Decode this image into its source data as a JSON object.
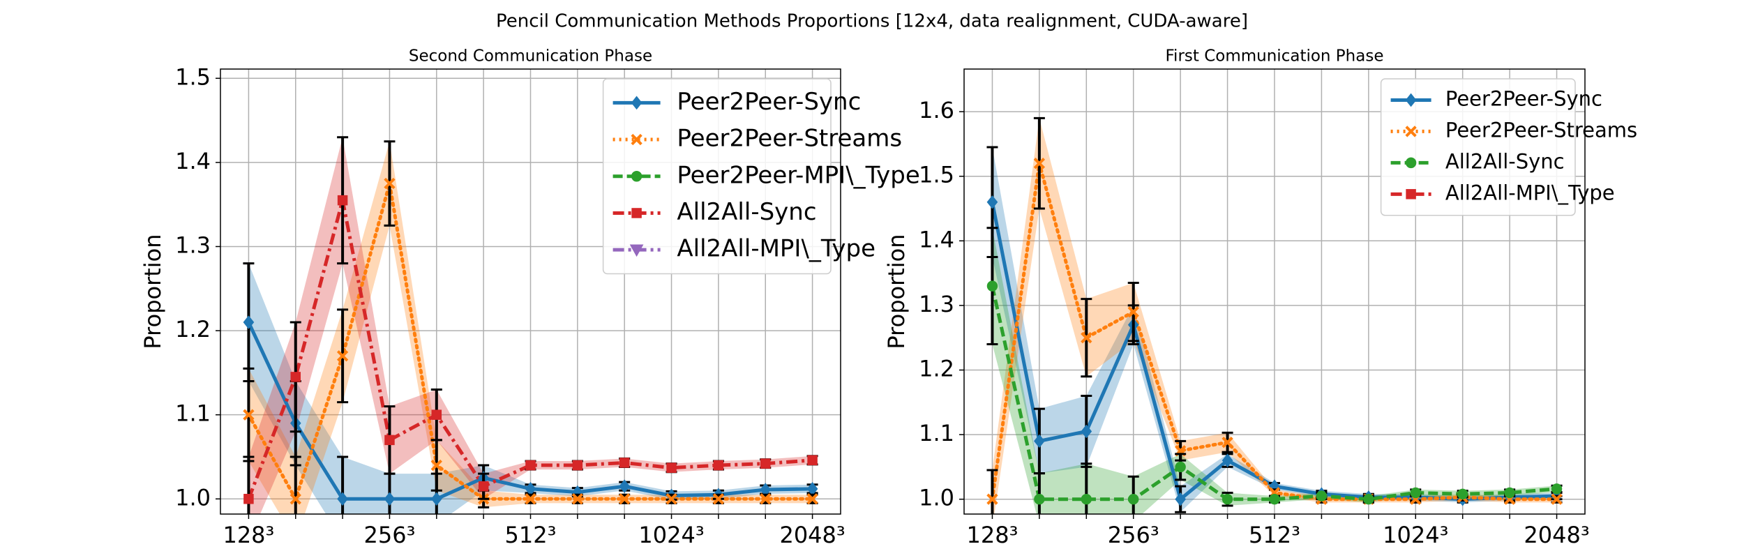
{
  "title": "Pencil Communication Methods Proportions [12x4, data realignment, CUDA-aware]",
  "chart_data": [
    {
      "type": "line",
      "title": "Second Communication Phase",
      "ylabel": "Proportion",
      "categories": [
        "128³",
        null,
        null,
        "256³",
        null,
        null,
        "512³",
        null,
        null,
        "1024³",
        null,
        null,
        "2048³"
      ],
      "ylim": [
        0.982,
        1.511
      ],
      "yticks": [
        {
          "value": 1.0,
          "label": "1.0"
        },
        1.1,
        1.2,
        1.3,
        1.4,
        1.5
      ],
      "grid": true,
      "legend": "upper right",
      "series": [
        {
          "name": "Peer2Peer-Sync",
          "color": "#1f77b4",
          "style": "solid",
          "marker": "diamond",
          "values": [
            1.21,
            1.09,
            1.0,
            1.0,
            1.0,
            1.025,
            1.012,
            1.008,
            1.015,
            1.004,
            1.005,
            1.011,
            1.012
          ],
          "errors": [
            0.07,
            0.05,
            0.05,
            0.03,
            0.03,
            0.015,
            0.005,
            0.005,
            0.005,
            0.005,
            0.005,
            0.005,
            0.005
          ]
        },
        {
          "name": "Peer2Peer-Streams",
          "color": "#ff7f0e",
          "style": "dotted",
          "marker": "x",
          "values": [
            1.1,
            1.0,
            1.17,
            1.375,
            1.04,
            1.0,
            1.0,
            1.0,
            1.0,
            1.0,
            1.0,
            1.0,
            1.0
          ],
          "errors": [
            0.055,
            0.05,
            0.055,
            0.05,
            0.03,
            0.01,
            0.005,
            0.005,
            0.005,
            0.005,
            0.005,
            0.005,
            0.005
          ]
        },
        {
          "name": "Peer2Peer-MPI\\_Type",
          "color": "#2ca02c",
          "style": "dashed",
          "marker": "circle",
          "values": [
            null,
            null,
            null,
            null,
            null,
            null,
            null,
            null,
            null,
            null,
            null,
            null,
            null
          ]
        },
        {
          "name": "All2All-Sync",
          "color": "#d62728",
          "style": "dashdot",
          "marker": "square",
          "values": [
            1.0,
            1.145,
            1.355,
            1.07,
            1.1,
            1.015,
            1.04,
            1.04,
            1.043,
            1.037,
            1.04,
            1.042,
            1.046
          ],
          "errors": [
            0.05,
            0.065,
            0.075,
            0.04,
            0.03,
            0.015,
            0.005,
            0.005,
            0.005,
            0.005,
            0.005,
            0.005,
            0.005
          ]
        },
        {
          "name": "All2All-MPI\\_Type",
          "color": "#9467bd",
          "style": "dashdot",
          "marker": "triangle",
          "values": [
            null,
            null,
            null,
            null,
            null,
            null,
            null,
            null,
            null,
            null,
            null,
            null,
            null
          ]
        }
      ]
    },
    {
      "type": "line",
      "title": "First Communication Phase",
      "ylabel": "Proportion",
      "categories": [
        "128³",
        null,
        null,
        "256³",
        null,
        null,
        "512³",
        null,
        null,
        "1024³",
        null,
        null,
        "2048³"
      ],
      "ylim": [
        0.977,
        1.666
      ],
      "yticks": [
        {
          "value": 1.0,
          "label": "1.0"
        },
        1.1,
        1.2,
        1.3,
        1.4,
        1.5,
        1.6
      ],
      "grid": true,
      "legend": "upper right",
      "series": [
        {
          "name": "Peer2Peer-Sync",
          "color": "#1f77b4",
          "style": "solid",
          "marker": "diamond",
          "values": [
            1.46,
            1.09,
            1.105,
            1.27,
            1.0,
            1.06,
            1.02,
            1.008,
            1.003,
            1.003,
            1.0,
            1.003,
            1.005
          ],
          "errors": [
            0.085,
            0.05,
            0.055,
            0.03,
            0.02,
            0.01,
            0.005,
            0.005,
            0.005,
            0.005,
            0.005,
            0.005,
            0.005
          ]
        },
        {
          "name": "Peer2Peer-Streams",
          "color": "#ff7f0e",
          "style": "dotted",
          "marker": "x",
          "values": [
            1.0,
            1.52,
            1.25,
            1.29,
            1.075,
            1.088,
            1.01,
            1.0,
            1.0,
            1.0,
            1.003,
            1.0,
            1.0
          ],
          "errors": [
            0.045,
            0.07,
            0.06,
            0.045,
            0.015,
            0.015,
            0.005,
            0.005,
            0.005,
            0.005,
            0.005,
            0.005,
            0.005
          ]
        },
        {
          "name": "All2All-Sync",
          "color": "#2ca02c",
          "style": "dashed",
          "marker": "circle",
          "values": [
            1.33,
            1.0,
            1.0,
            1.0,
            1.05,
            1.0,
            1.0,
            1.005,
            1.0,
            1.01,
            1.008,
            1.01,
            1.016
          ],
          "errors": [
            0.09,
            0.04,
            0.055,
            0.035,
            0.02,
            0.01,
            0.005,
            0.005,
            0.005,
            0.005,
            0.005,
            0.005,
            0.005
          ]
        },
        {
          "name": "All2All-MPI\\_Type",
          "color": "#d62728",
          "style": "dashdot",
          "marker": "square",
          "values": [
            null,
            null,
            null,
            null,
            null,
            null,
            null,
            null,
            null,
            null,
            null,
            null,
            null
          ]
        }
      ]
    }
  ]
}
